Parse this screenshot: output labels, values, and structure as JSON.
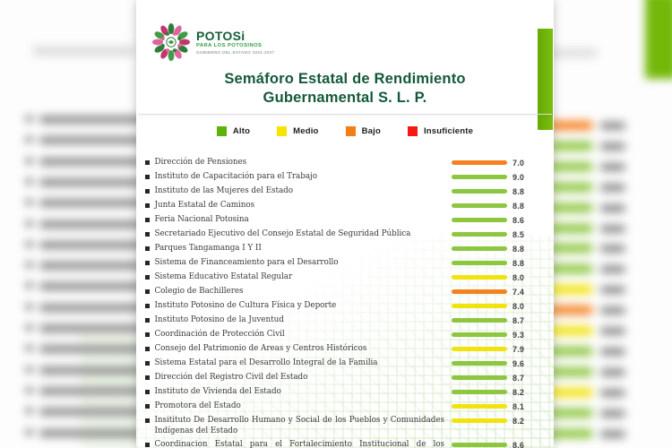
{
  "header": {
    "logo": {
      "brand": "POTOSi",
      "tagline": "PARA LOS POTOSINOS",
      "subtag": "GOBIERNO DEL ESTADO 2021-2027"
    },
    "title_line1": "Semáforo Estatal de Rendimiento",
    "title_line2": "Gubernamental S. L. P."
  },
  "legend": {
    "items": [
      {
        "label": "Alto",
        "level": "alto",
        "color": "#5db30a"
      },
      {
        "label": "Medio",
        "level": "medio",
        "color": "#f7e400"
      },
      {
        "label": "Bajo",
        "level": "bajo",
        "color": "#f57e14"
      },
      {
        "label": "Insuficiente",
        "level": "insuficiente",
        "color": "#f51916"
      }
    ]
  },
  "colors": {
    "bar_alto": "#8dc63f",
    "bar_medio": "#f2e30e",
    "bar_bajo": "#f58220",
    "bar_insuficiente": "#ed1c24",
    "accent_bar": "#74b80a",
    "title_green": "#14593a"
  },
  "chart_data": {
    "type": "bar",
    "title": "Semáforo Estatal de Rendimiento Gubernamental S. L. P.",
    "legend_entries": [
      "Alto",
      "Medio",
      "Bajo",
      "Insuficiente"
    ],
    "value_range": [
      0,
      10
    ],
    "rows": [
      {
        "name": "Dirección de Pensiones",
        "value": "7.0",
        "level": "bajo"
      },
      {
        "name": "Instituto de Capacitación para el Trabajo",
        "value": "9.0",
        "level": "alto"
      },
      {
        "name": "Instituto de las Mujeres del Estado",
        "value": "8.8",
        "level": "alto"
      },
      {
        "name": "Junta Estatal de Caminos",
        "value": "8.8",
        "level": "alto"
      },
      {
        "name": "Feria Nacional Potosina",
        "value": "8.6",
        "level": "alto"
      },
      {
        "name": "Secretariado Ejecutivo del Consejo Estatal de Seguridad Pública",
        "value": "8.5",
        "level": "alto"
      },
      {
        "name": "Parques Tangamanga I Y II",
        "value": "8.8",
        "level": "alto"
      },
      {
        "name": "Sistema de Financeamiento para el Desarrollo",
        "value": "8.8",
        "level": "alto"
      },
      {
        "name": "Sistema Educativo Estatal Regular",
        "value": "8.0",
        "level": "medio"
      },
      {
        "name": "Colegio de Bachilleres",
        "value": "7.4",
        "level": "bajo"
      },
      {
        "name": "Instituto Potosino de Cultura Física y Deporte",
        "value": "8.0",
        "level": "medio"
      },
      {
        "name": "Instituto Potosino de la Juventud",
        "value": "8.7",
        "level": "alto"
      },
      {
        "name": "Coordinación de Protección Civil",
        "value": "9.3",
        "level": "alto"
      },
      {
        "name": "Consejo del Patrimonio de Areas y Centros Históricos",
        "value": "7.9",
        "level": "medio"
      },
      {
        "name": "Sistema Estatal para el Desarrollo Integral de la Familia",
        "value": "9.6",
        "level": "alto"
      },
      {
        "name": "Dirección del Registro Civil del Estado",
        "value": "8.7",
        "level": "alto"
      },
      {
        "name": "Instituto de Vivienda del Estado",
        "value": "8.2",
        "level": "alto"
      },
      {
        "name": "Promotora del Estado",
        "value": "8.1",
        "level": "medio"
      },
      {
        "name": "Insitituto De Desarrollo Humano y Social de los Pueblos y Comunidades Indígenas del Estado",
        "value": "8.2",
        "level": "medio"
      },
      {
        "name": "Coordinacion Estatal para el Fortalecimiento Institucional de los Municipios",
        "value": "8.6",
        "level": "alto"
      }
    ]
  }
}
